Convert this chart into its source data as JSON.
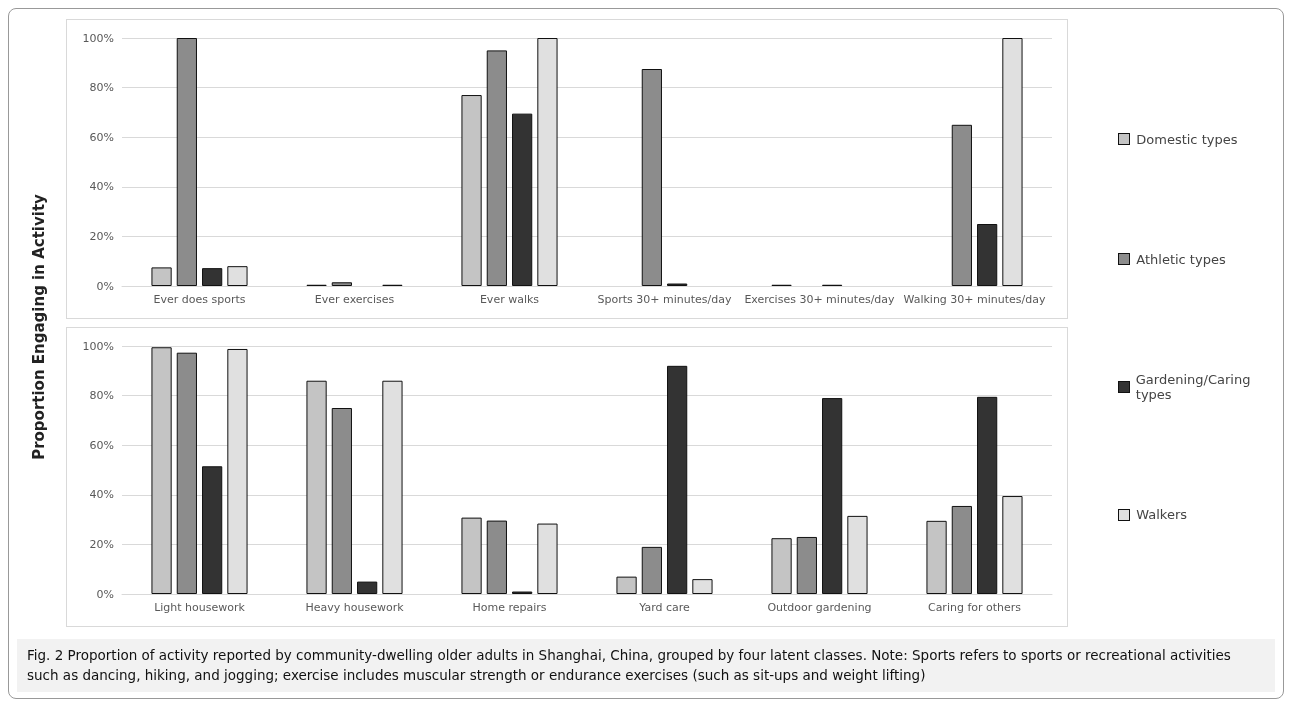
{
  "chart_data": [
    {
      "type": "bar",
      "ylabel": "Proportion Engaging in Activity",
      "categories": [
        "Ever does sports",
        "Ever exercises",
        "Ever walks",
        "Sports 30+ minutes/day",
        "Exercises 30+ minutes/day",
        "Walking 30+ minutes/day"
      ],
      "series": [
        {
          "name": "Domestic types",
          "color": "#c4c4c4",
          "values": [
            7.5,
            0.5,
            77,
            null,
            0.5,
            null
          ]
        },
        {
          "name": "Athletic types",
          "color": "#8c8c8c",
          "values": [
            100,
            1.5,
            95,
            87.5,
            null,
            65
          ]
        },
        {
          "name": "Gardening/Caring types",
          "color": "#333333",
          "values": [
            7.2,
            null,
            69.5,
            1,
            0.5,
            25
          ]
        },
        {
          "name": "Walkers",
          "color": "#e0e0e0",
          "values": [
            8,
            0.5,
            100,
            null,
            null,
            100
          ]
        }
      ],
      "ylim": [
        0,
        100
      ],
      "yticks": [
        {
          "value": 0,
          "label": "0%"
        },
        {
          "value": 20,
          "label": "20%"
        },
        {
          "value": 40,
          "label": "40%"
        },
        {
          "value": 60,
          "label": "60%"
        },
        {
          "value": 80,
          "label": "80%"
        },
        {
          "value": 100,
          "label": "100%"
        }
      ],
      "grid": "y",
      "legend": "right"
    },
    {
      "type": "bar",
      "categories": [
        "Light housework",
        "Heavy housework",
        "Home repairs",
        "Yard care",
        "Outdoor gardening",
        "Caring for others"
      ],
      "series": [
        {
          "color": "#c4c4c4",
          "values": [
            99.5,
            86,
            30.8,
            7,
            22.5,
            29.5
          ]
        },
        {
          "color": "#8c8c8c",
          "values": [
            97.3,
            75,
            29.6,
            19,
            23,
            35.5
          ]
        },
        {
          "color": "#333333",
          "values": [
            51.5,
            5,
            1,
            92,
            79,
            79.5
          ]
        },
        {
          "color": "#e0e0e0",
          "values": [
            98.8,
            86,
            28.4,
            6,
            31.5,
            39.5
          ]
        }
      ],
      "ylim": [
        0,
        100
      ],
      "yticks": [
        {
          "value": 0,
          "label": "0%"
        },
        {
          "value": 20,
          "label": "20%"
        },
        {
          "value": 40,
          "label": "40%"
        },
        {
          "value": 60,
          "label": "60%"
        },
        {
          "value": 80,
          "label": "80%"
        },
        {
          "value": 100,
          "label": "100%"
        }
      ],
      "grid": "y",
      "annotations": [
        "Fig. 2  Proportion of activity reported by community-dwelling older adults in Shanghai, China, grouped by four latent classes. Note: Sports refers to sports or recreational activities such as dancing, hiking, and jogging; exercise includes muscular strength or endurance exercises (such as sit-ups and weight lifting)"
      ]
    }
  ]
}
